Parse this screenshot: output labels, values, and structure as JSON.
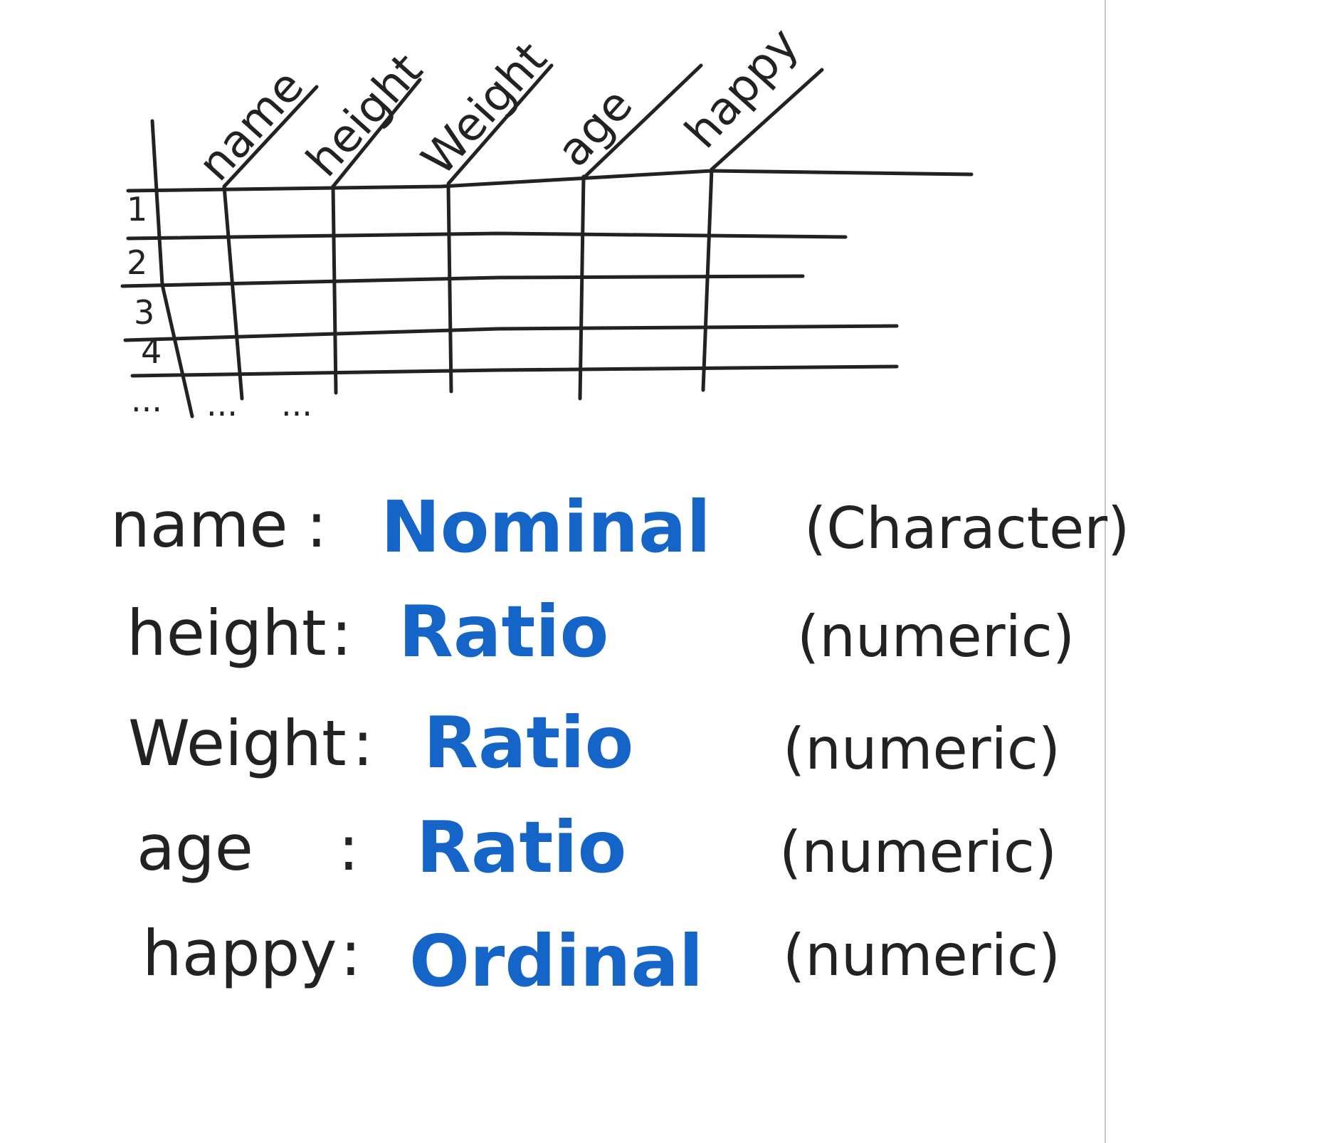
{
  "colors": {
    "ink": "#222222",
    "blue_ink": "#1565c8",
    "paper": "#ffffff"
  },
  "table": {
    "columns": [
      "name",
      "height",
      "Weight",
      "age",
      "happy"
    ],
    "rows": [
      "1",
      "2",
      "3",
      "4"
    ],
    "ellipsis": "..."
  },
  "variables": [
    {
      "name": "name",
      "level": "Nominal",
      "type": "(Character)"
    },
    {
      "name": "height",
      "level": "Ratio",
      "type": "(numeric)"
    },
    {
      "name": "Weight",
      "level": "Ratio",
      "type": "(numeric)"
    },
    {
      "name": "age",
      "level": "Ratio",
      "type": "(numeric)"
    },
    {
      "name": "happy",
      "level": "Ordinal",
      "type": "(numeric)"
    }
  ]
}
